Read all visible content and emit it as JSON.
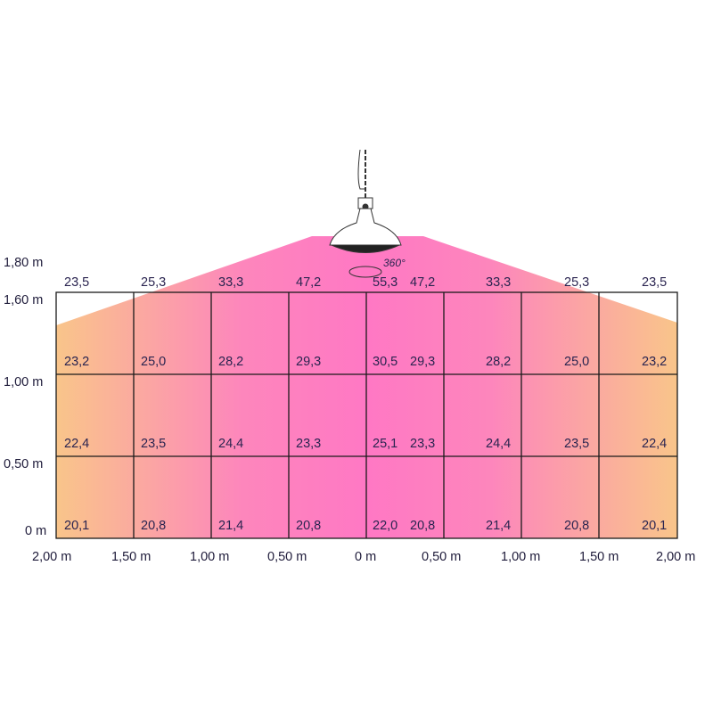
{
  "heater": {
    "rotation_label": "360°"
  },
  "y_axis": [
    "1,80 m",
    "1,60 m",
    "1,00 m",
    "0,50 m",
    "0 m"
  ],
  "x_axis": [
    "2,00 m",
    "1,50 m",
    "1,00 m",
    "0,50 m",
    "0 m",
    "0,50 m",
    "1,00 m",
    "1,50 m",
    "2,00 m"
  ],
  "rows": [
    {
      "height": "1,80 m",
      "values": [
        "23,5",
        "25,3",
        "33,3",
        "47,2",
        "55,3",
        "47,2",
        "33,3",
        "25,3",
        "23,5"
      ]
    },
    {
      "height": "1,60 m",
      "values": [
        "23,2",
        "25,0",
        "28,2",
        "29,3",
        "30,5",
        "29,3",
        "28,2",
        "25,0",
        "23,2"
      ]
    },
    {
      "height": "1,00 m",
      "values": [
        "22,4",
        "23,5",
        "24,4",
        "23,3",
        "25,1",
        "23,3",
        "24,4",
        "23,5",
        "22,4"
      ]
    },
    {
      "height": "0,50 m",
      "values": [
        "20,1",
        "20,8",
        "21,4",
        "20,8",
        "22,0",
        "20,8",
        "21,4",
        "20,8",
        "20,1"
      ]
    }
  ],
  "colors": {
    "edge": "#f9c58a",
    "center": "#ff78c4"
  }
}
